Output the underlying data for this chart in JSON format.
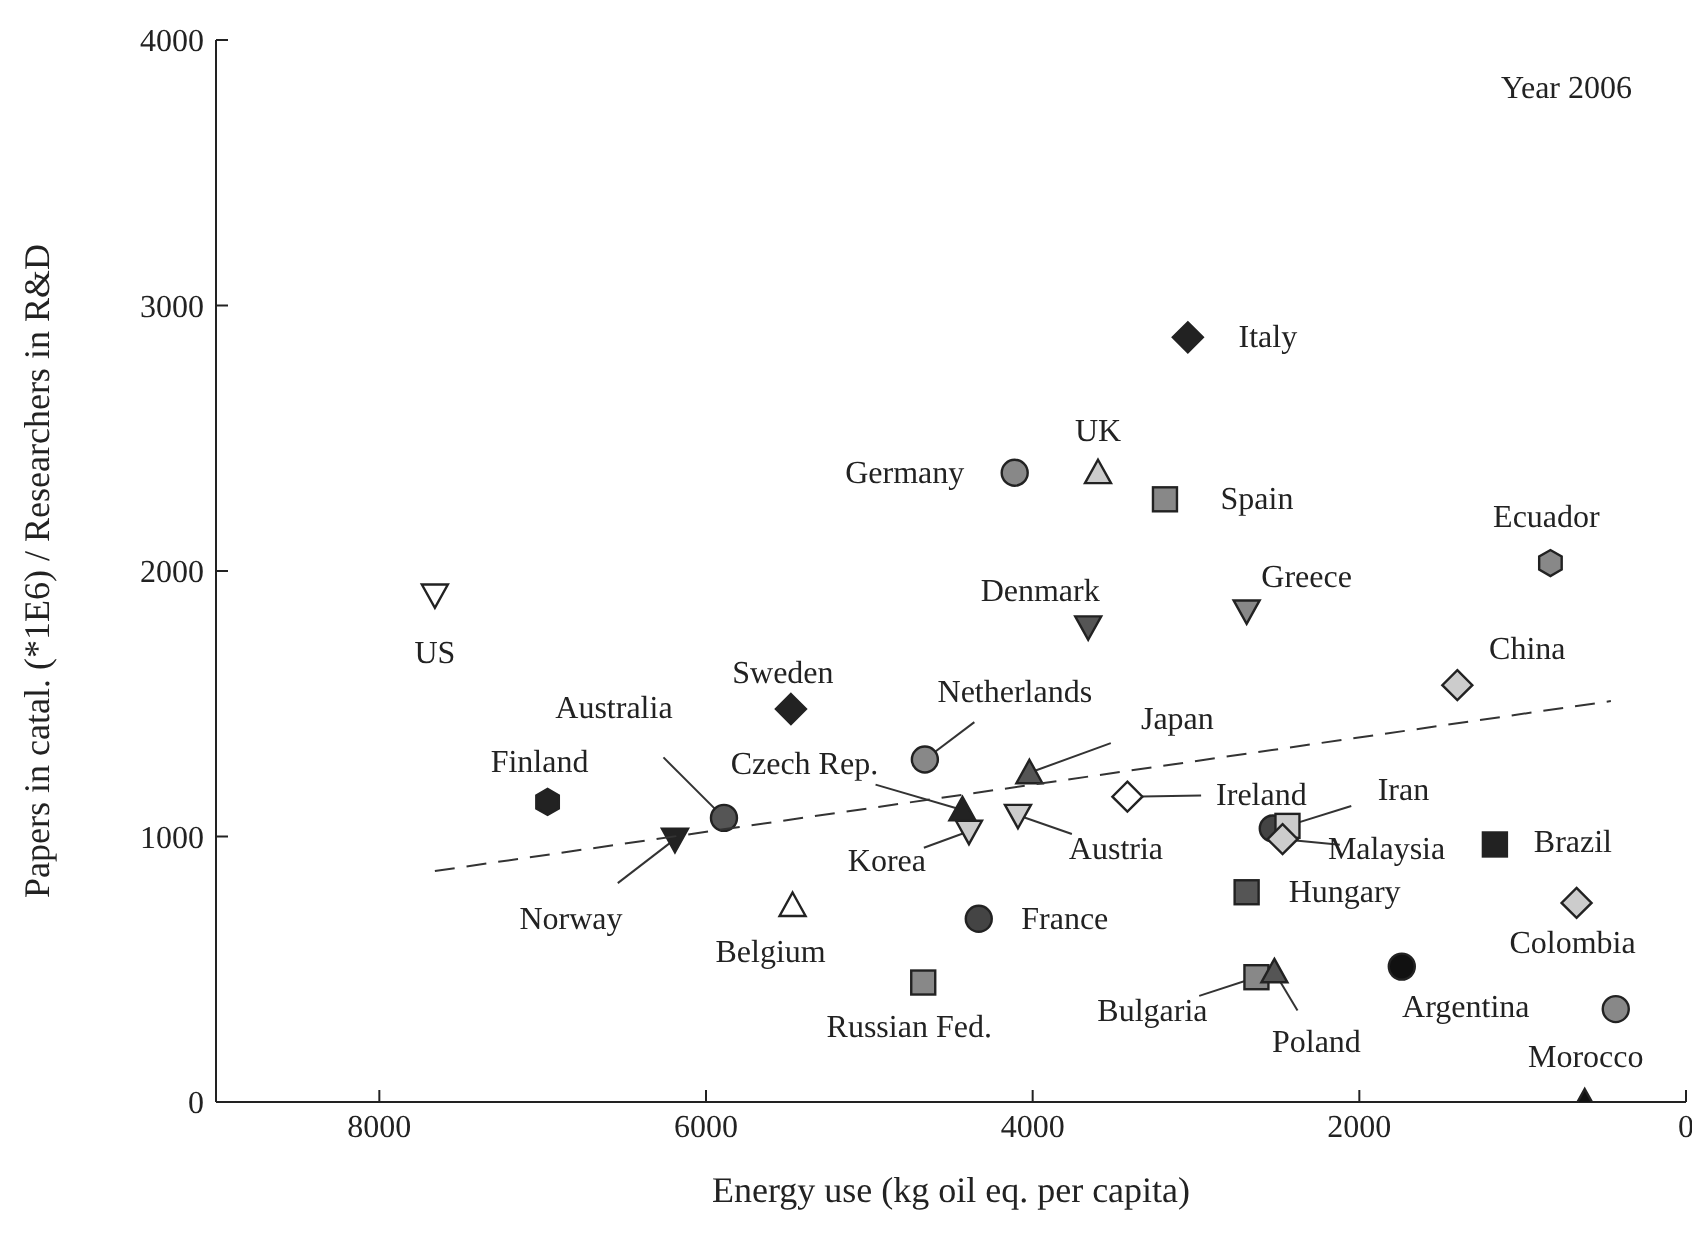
{
  "chart_data": {
    "type": "scatter",
    "xlabel": "Energy use (kg oil eq. per capita)",
    "ylabel": "Papers in catal. (*1E6) / Researchers in R&D",
    "annotations": [
      "Year 2006"
    ],
    "xlim": [
      9000,
      0
    ],
    "xticks": [
      8000,
      6000,
      4000,
      2000,
      0
    ],
    "ylim": [
      0,
      4000
    ],
    "yticks": [
      0,
      1000,
      2000,
      3000,
      4000
    ],
    "series": [
      {
        "name": "US",
        "marker": "triangle-down",
        "color": "#ffffff",
        "x": [
          7660
        ],
        "values": [
          1910
        ]
      },
      {
        "name": "Sweden",
        "marker": "diamond",
        "color": "#222222",
        "x": [
          5480
        ],
        "values": [
          1480
        ]
      },
      {
        "name": "Finland",
        "color": "#222222",
        "x": [
          6970
        ],
        "values": [
          1130
        ]
      },
      {
        "name": "Australia",
        "marker": "circle",
        "color": "#555555",
        "x": [
          5890
        ],
        "values": [
          1070
        ]
      },
      {
        "name": "Norway",
        "marker": "triangle-down",
        "color": "#222222",
        "x": [
          6190
        ],
        "values": [
          990
        ]
      },
      {
        "name": "Belgium",
        "marker": "triangle",
        "color": "#ffffff",
        "x": [
          5470
        ],
        "values": [
          740
        ]
      },
      {
        "name": "Netherlands",
        "marker": "circle",
        "color": "#888888",
        "x": [
          4660
        ],
        "values": [
          1290
        ]
      },
      {
        "name": "Czech Rep.",
        "marker": "triangle",
        "color": "#222222",
        "x": [
          4430
        ],
        "values": [
          1100
        ]
      },
      {
        "name": "Korea",
        "marker": "triangle-down",
        "color": "#cccccc",
        "x": [
          4390
        ],
        "values": [
          1020
        ]
      },
      {
        "name": "Japan",
        "marker": "triangle",
        "color": "#555555",
        "x": [
          4020
        ],
        "values": [
          1240
        ]
      },
      {
        "name": "Austria",
        "marker": "triangle-down",
        "color": "#cccccc",
        "x": [
          4090
        ],
        "values": [
          1080
        ]
      },
      {
        "name": "Russian Fed.",
        "marker": "square",
        "color": "#888888",
        "x": [
          4670
        ],
        "values": [
          450
        ]
      },
      {
        "name": "France",
        "marker": "circle",
        "color": "#444444",
        "x": [
          4330
        ],
        "values": [
          690
        ]
      },
      {
        "name": "Germany",
        "marker": "circle",
        "color": "#888888",
        "x": [
          4110
        ],
        "values": [
          2370
        ]
      },
      {
        "name": "UK",
        "marker": "triangle",
        "color": "#cccccc",
        "x": [
          3600
        ],
        "values": [
          2370
        ]
      },
      {
        "name": "Spain",
        "marker": "square",
        "color": "#888888",
        "x": [
          3190
        ],
        "values": [
          2270
        ]
      },
      {
        "name": "Italy",
        "marker": "diamond",
        "color": "#222222",
        "x": [
          3050
        ],
        "values": [
          2880
        ]
      },
      {
        "name": "Denmark",
        "marker": "triangle-down",
        "color": "#555555",
        "x": [
          3660
        ],
        "values": [
          1790
        ]
      },
      {
        "name": "Greece",
        "marker": "triangle-down",
        "color": "#888888",
        "x": [
          2690
        ],
        "values": [
          1850
        ]
      },
      {
        "name": "Ireland",
        "marker": "diamond",
        "color": "#ffffff",
        "x": [
          3420
        ],
        "values": [
          1150
        ]
      },
      {
        "marker": "circle",
        "color": "#444444",
        "x": [
          2530
        ],
        "values": [
          1030
        ]
      },
      {
        "name": "Iran",
        "marker": "square",
        "color": "#cccccc",
        "x": [
          2440
        ],
        "values": [
          1040
        ]
      },
      {
        "name": "Malaysia",
        "marker": "diamond",
        "color": "#cccccc",
        "x": [
          2470
        ],
        "values": [
          990
        ]
      },
      {
        "name": "Hungary",
        "marker": "square",
        "color": "#555555",
        "x": [
          2690
        ],
        "values": [
          790
        ]
      },
      {
        "name": "Brazil",
        "marker": "square",
        "color": "#222222",
        "x": [
          1170
        ],
        "values": [
          970
        ]
      },
      {
        "name": "Ecuador",
        "color": "#888888",
        "x": [
          830
        ],
        "values": [
          2030
        ]
      },
      {
        "name": "China",
        "marker": "diamond",
        "color": "#cccccc",
        "x": [
          1400
        ],
        "values": [
          1570
        ]
      },
      {
        "name": "Colombia",
        "marker": "diamond",
        "color": "#cccccc",
        "x": [
          670
        ],
        "values": [
          750
        ]
      },
      {
        "name": "Argentina",
        "marker": "circle",
        "color": "#111111",
        "x": [
          1740
        ],
        "values": [
          510
        ]
      },
      {
        "name": "Morocco",
        "marker": "circle",
        "color": "#888888",
        "x": [
          430
        ],
        "values": [
          350
        ]
      },
      {
        "name": "Bulgaria",
        "marker": "square",
        "color": "#888888",
        "x": [
          2630
        ],
        "values": [
          470
        ]
      },
      {
        "name": "Poland",
        "marker": "triangle",
        "color": "#555555",
        "x": [
          2520
        ],
        "values": [
          490
        ]
      },
      {
        "marker": "triangle",
        "color": "#111111",
        "x": [
          620
        ],
        "values": [
          0
        ]
      },
      {
        "type": "line",
        "marker": "none",
        "line_style": "dashed",
        "color": "#333333",
        "x": [
          7660,
          460
        ],
        "values": [
          870,
          1510
        ]
      }
    ]
  }
}
